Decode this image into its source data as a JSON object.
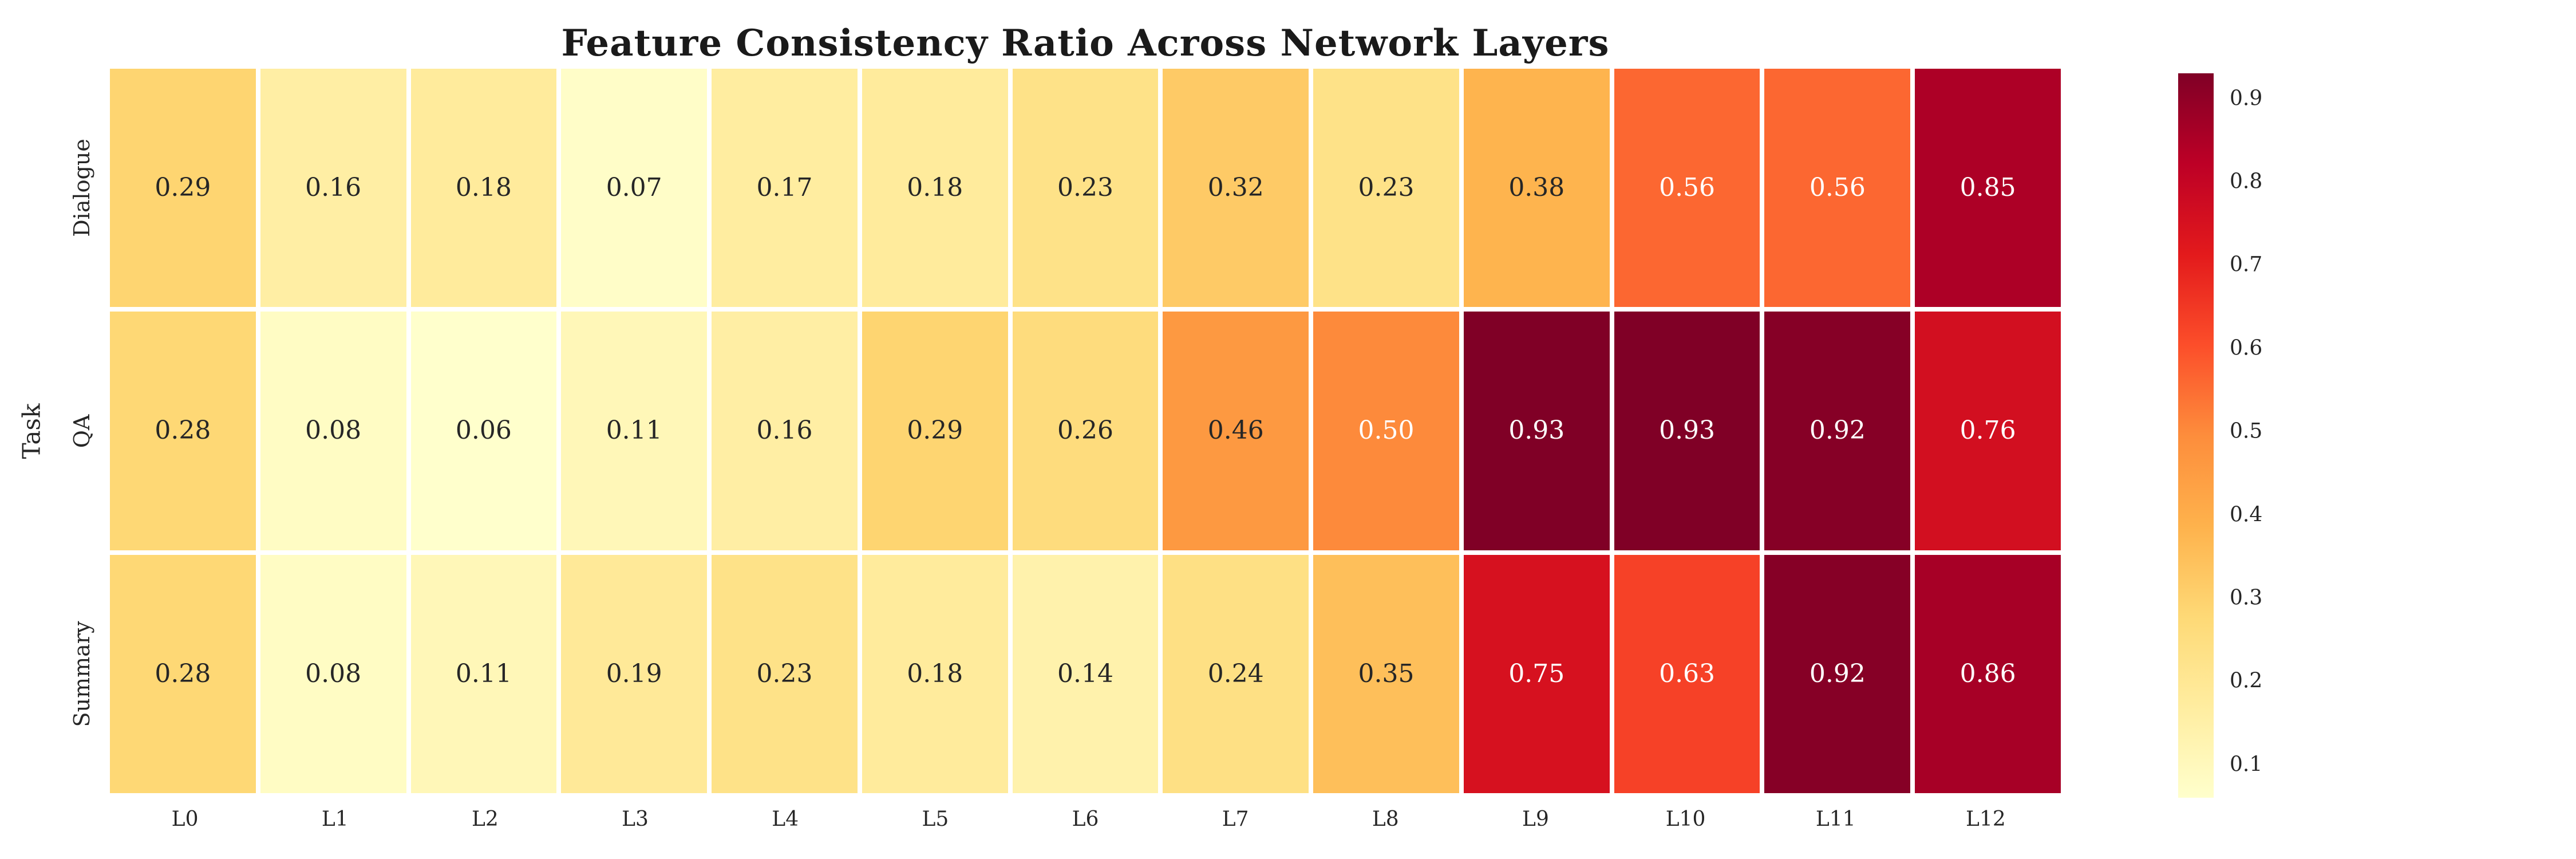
{
  "chart_data": {
    "type": "heatmap",
    "title": "Feature Consistency Ratio Across Network Layers",
    "y_axis_label": "Task",
    "x_categories": [
      "L0",
      "L1",
      "L2",
      "L3",
      "L4",
      "L5",
      "L6",
      "L7",
      "L8",
      "L9",
      "L10",
      "L11",
      "L12"
    ],
    "y_categories": [
      "Dialogue",
      "QA",
      "Summary"
    ],
    "values": [
      [
        0.29,
        0.16,
        0.18,
        0.07,
        0.17,
        0.18,
        0.23,
        0.32,
        0.23,
        0.38,
        0.56,
        0.56,
        0.85
      ],
      [
        0.28,
        0.08,
        0.06,
        0.11,
        0.16,
        0.29,
        0.26,
        0.46,
        0.5,
        0.93,
        0.93,
        0.92,
        0.76
      ],
      [
        0.28,
        0.08,
        0.11,
        0.19,
        0.23,
        0.18,
        0.14,
        0.24,
        0.35,
        0.75,
        0.63,
        0.92,
        0.86
      ]
    ],
    "annotation_format": "two_decimals",
    "grid_line_color": "#ffffff",
    "legend_position": "right-colorbar",
    "colormap": {
      "name": "YlOrRd",
      "vmin": 0.06,
      "vmax": 0.93,
      "anchors": [
        [
          0.0,
          "#ffffcc"
        ],
        [
          0.125,
          "#ffeda0"
        ],
        [
          0.25,
          "#fed976"
        ],
        [
          0.375,
          "#feb24c"
        ],
        [
          0.5,
          "#fd8d3c"
        ],
        [
          0.625,
          "#fc4e2a"
        ],
        [
          0.75,
          "#e31a1c"
        ],
        [
          0.875,
          "#bd0026"
        ],
        [
          1.0,
          "#800026"
        ]
      ]
    },
    "colorbar_ticks": [
      0.1,
      0.2,
      0.3,
      0.4,
      0.5,
      0.6,
      0.7,
      0.8,
      0.9
    ],
    "annotation_text": {
      "light": "#ffffff",
      "dark": "#262626",
      "luminance_threshold": 0.408
    },
    "title_color": "#1a1a1a",
    "tick_color": "#262626",
    "background": "#ffffff"
  }
}
